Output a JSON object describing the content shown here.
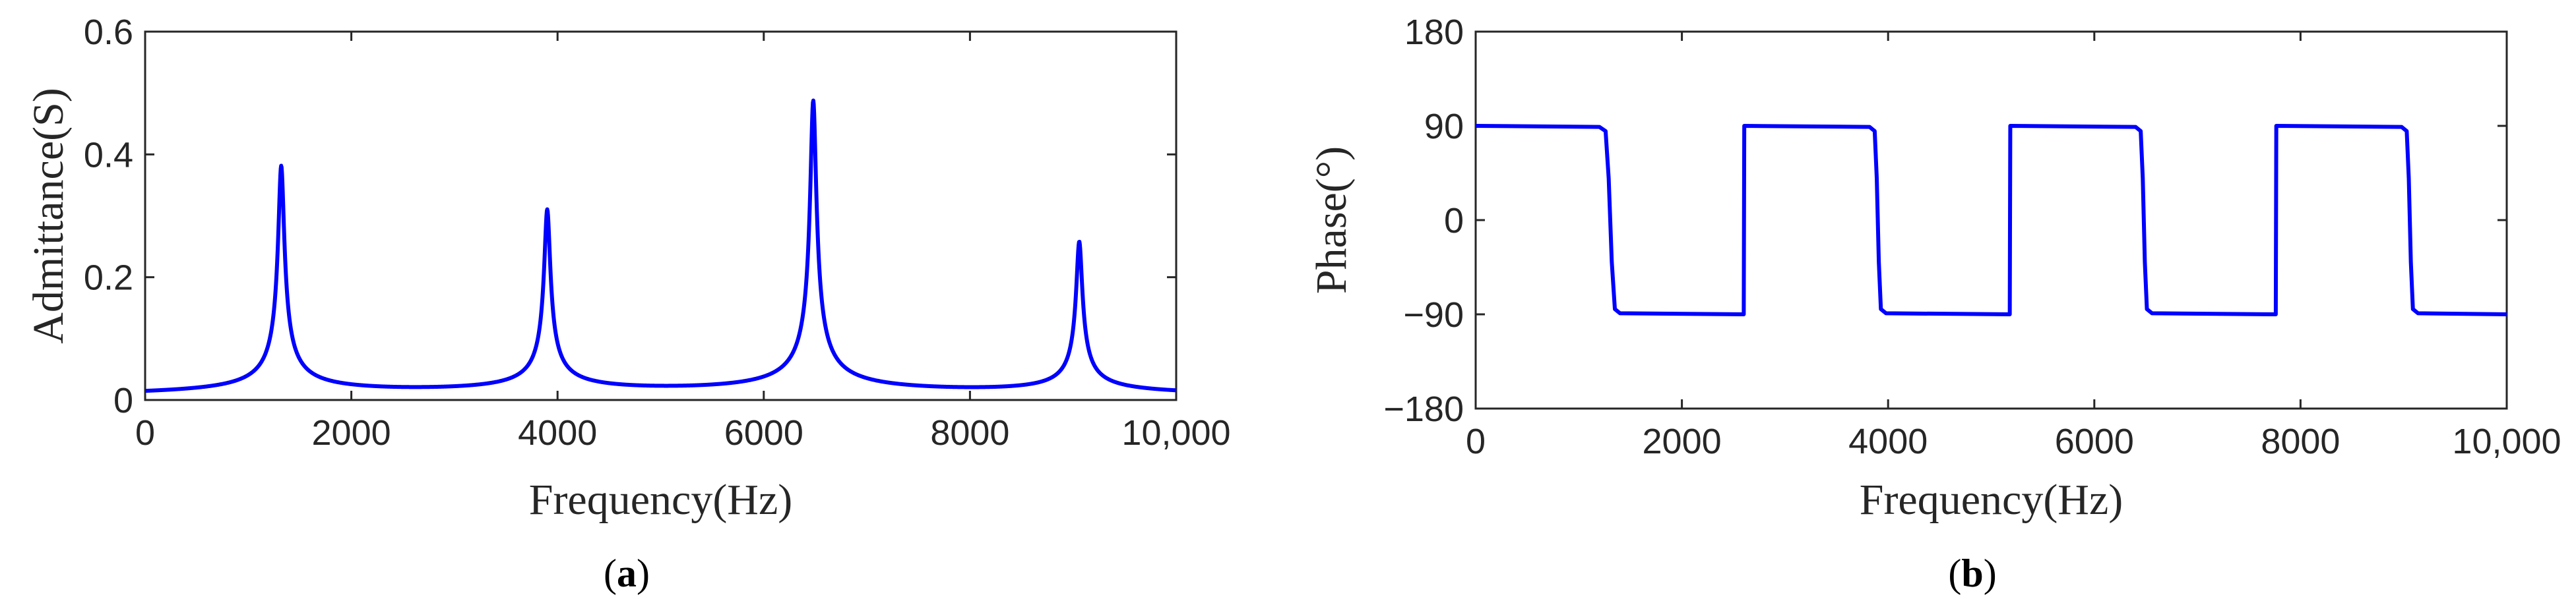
{
  "chart_data": [
    {
      "panel": "a",
      "panel_label": "a",
      "type": "line",
      "xlabel": "Frequency(Hz)",
      "ylabel": "Admittance(S)",
      "xlim": [
        0,
        10000
      ],
      "ylim": [
        0,
        0.6
      ],
      "x_ticks": [
        0,
        2000,
        4000,
        6000,
        8000,
        10000
      ],
      "x_tick_labels": [
        "0",
        "2000",
        "4000",
        "6000",
        "8000",
        "10,000"
      ],
      "y_ticks": [
        0,
        0.2,
        0.4,
        0.6
      ],
      "y_tick_labels": [
        "0",
        "0.2",
        "0.4",
        "0.6"
      ],
      "grid": false,
      "series": [
        {
          "color": "#0000ff",
          "peaks": [
            {
              "x": 1320,
              "y": 0.375
            },
            {
              "x": 3900,
              "y": 0.3
            },
            {
              "x": 6480,
              "y": 0.48
            },
            {
              "x": 9060,
              "y": 0.25
            }
          ],
          "baseline": 0.002
        }
      ]
    },
    {
      "panel": "b",
      "panel_label": "b",
      "type": "line",
      "xlabel": "Frequency(Hz)",
      "ylabel": "Phase(°)",
      "xlim": [
        0,
        10000
      ],
      "ylim": [
        -180,
        180
      ],
      "x_ticks": [
        0,
        2000,
        4000,
        6000,
        8000,
        10000
      ],
      "x_tick_labels": [
        "0",
        "2000",
        "4000",
        "6000",
        "8000",
        "10,000"
      ],
      "y_ticks": [
        -180,
        -90,
        0,
        90,
        180
      ],
      "y_tick_labels": [
        "−180",
        "−90",
        "0",
        "90",
        "180"
      ],
      "grid": false,
      "series": [
        {
          "color": "#0000ff",
          "points": [
            [
              0,
              90
            ],
            [
              1200,
              89
            ],
            [
              1260,
              85
            ],
            [
              1290,
              40
            ],
            [
              1320,
              -40
            ],
            [
              1350,
              -85
            ],
            [
              1400,
              -89
            ],
            [
              2600,
              -90
            ],
            [
              2605,
              90
            ],
            [
              3820,
              89
            ],
            [
              3870,
              85
            ],
            [
              3890,
              40
            ],
            [
              3910,
              -40
            ],
            [
              3930,
              -85
            ],
            [
              3980,
              -89
            ],
            [
              5180,
              -90
            ],
            [
              5185,
              90
            ],
            [
              6400,
              89
            ],
            [
              6450,
              85
            ],
            [
              6470,
              40
            ],
            [
              6490,
              -40
            ],
            [
              6510,
              -85
            ],
            [
              6560,
              -89
            ],
            [
              7760,
              -90
            ],
            [
              7765,
              90
            ],
            [
              8980,
              89
            ],
            [
              9030,
              85
            ],
            [
              9050,
              40
            ],
            [
              9070,
              -40
            ],
            [
              9090,
              -85
            ],
            [
              9140,
              -89
            ],
            [
              10000,
              -90
            ]
          ]
        }
      ]
    }
  ]
}
